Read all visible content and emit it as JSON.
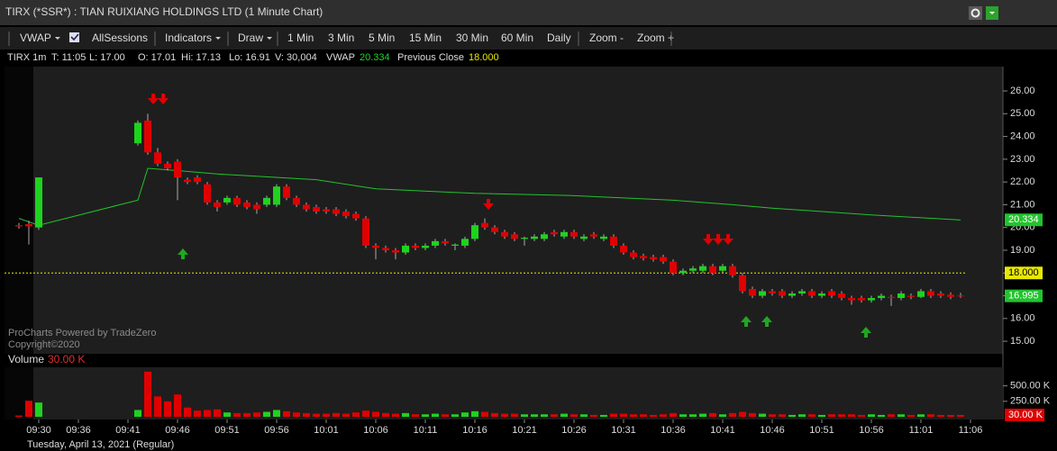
{
  "header": {
    "title": "TIRX (*SSR*) : TIAN RUIXIANG HOLDINGS LTD (1 Minute Chart)"
  },
  "toolbar": [
    "VWAP",
    "AllSessions",
    "Indicators",
    "Draw",
    "1 Min",
    "3 Min",
    "5 Min",
    "15 Min",
    "30 Min",
    "60 Min",
    "Daily",
    "Zoom -",
    "Zoom +"
  ],
  "info": [
    "TIRX 1m",
    "T: 11:05",
    "L: 17.00",
    "O: 17.01",
    "Hi: 17.13",
    "Lo: 16.91",
    "V: 30,004",
    "VWAP",
    "20.334",
    "Previous Close",
    "18.000"
  ],
  "watermark": [
    "ProCharts Powered by TradeZero",
    "Copyright©2020"
  ],
  "footer": "Tuesday, April 13, 2021 (Regular)",
  "chart_data": {
    "type": "candlestick",
    "up_color": "#1ed31e",
    "down_color": "#e00000",
    "categories": [
      null,
      null,
      "09:30",
      null,
      null,
      null,
      "09:36",
      null,
      null,
      null,
      null,
      "09:41",
      null,
      null,
      null,
      null,
      "09:46",
      null,
      null,
      null,
      null,
      "09:51",
      null,
      null,
      null,
      null,
      "09:56",
      null,
      null,
      null,
      null,
      "10:01",
      null,
      null,
      null,
      null,
      "10:06",
      null,
      null,
      null,
      null,
      "10:11",
      null,
      null,
      null,
      null,
      "10:16",
      null,
      null,
      null,
      null,
      "10:21",
      null,
      null,
      null,
      null,
      "10:26",
      null,
      null,
      null,
      null,
      "10:31",
      null,
      null,
      null,
      null,
      "10:36",
      null,
      null,
      null,
      null,
      "10:41",
      null,
      null,
      null,
      null,
      "10:46",
      null,
      null,
      null,
      null,
      "10:51",
      null,
      null,
      null,
      null,
      "10:56",
      null,
      null,
      null,
      null,
      "11:01",
      null,
      null,
      null,
      null,
      "11:06"
    ],
    "candles": [
      {
        "open": 20.1,
        "high": 20.2,
        "low": 19.95,
        "close": 20.05,
        "volume": 20000
      },
      {
        "open": 20.15,
        "high": 20.3,
        "low": 19.25,
        "close": 20.05,
        "volume": 260000
      },
      {
        "open": 20.0,
        "high": 22.2,
        "low": 19.9,
        "close": 22.2,
        "volume": 230000
      },
      null,
      null,
      null,
      null,
      null,
      null,
      null,
      null,
      null,
      {
        "open": 23.7,
        "high": 24.7,
        "low": 23.6,
        "close": 24.6,
        "volume": 110000
      },
      {
        "open": 24.7,
        "high": 25.0,
        "low": 23.2,
        "close": 23.3,
        "volume": 730000
      },
      {
        "open": 23.3,
        "high": 23.5,
        "low": 22.7,
        "close": 22.8,
        "volume": 330000
      },
      {
        "open": 22.8,
        "high": 22.9,
        "low": 22.5,
        "close": 22.6,
        "volume": 250000
      },
      {
        "open": 22.9,
        "high": 23.0,
        "low": 21.2,
        "close": 22.2,
        "volume": 360000
      },
      {
        "open": 22.1,
        "high": 22.2,
        "low": 21.9,
        "close": 22.0,
        "volume": 150000
      },
      {
        "open": 22.2,
        "high": 22.3,
        "low": 21.9,
        "close": 22.0,
        "volume": 100000
      },
      {
        "open": 21.9,
        "high": 22.0,
        "low": 21.0,
        "close": 21.1,
        "volume": 110000
      },
      {
        "open": 21.1,
        "high": 21.2,
        "low": 20.7,
        "close": 20.9,
        "volume": 120000
      },
      {
        "open": 21.1,
        "high": 21.4,
        "low": 21.0,
        "close": 21.3,
        "volume": 70000
      },
      {
        "open": 21.3,
        "high": 21.4,
        "low": 20.9,
        "close": 21.0,
        "volume": 60000
      },
      {
        "open": 21.1,
        "high": 21.2,
        "low": 20.8,
        "close": 20.9,
        "volume": 60000
      },
      {
        "open": 21.0,
        "high": 21.1,
        "low": 20.6,
        "close": 20.8,
        "volume": 70000
      },
      {
        "open": 21.0,
        "high": 21.4,
        "low": 20.9,
        "close": 21.3,
        "volume": 80000
      },
      {
        "open": 21.0,
        "high": 21.9,
        "low": 20.9,
        "close": 21.8,
        "volume": 110000
      },
      {
        "open": 21.8,
        "high": 21.9,
        "low": 21.2,
        "close": 21.3,
        "volume": 90000
      },
      {
        "open": 21.3,
        "high": 21.4,
        "low": 20.9,
        "close": 21.0,
        "volume": 70000
      },
      {
        "open": 21.0,
        "high": 21.1,
        "low": 20.7,
        "close": 20.8,
        "volume": 60000
      },
      {
        "open": 20.9,
        "high": 21.0,
        "low": 20.6,
        "close": 20.7,
        "volume": 50000
      },
      {
        "open": 20.8,
        "high": 20.9,
        "low": 20.6,
        "close": 20.7,
        "volume": 50000
      },
      {
        "open": 20.8,
        "high": 20.9,
        "low": 20.5,
        "close": 20.6,
        "volume": 60000
      },
      {
        "open": 20.7,
        "high": 20.8,
        "low": 20.4,
        "close": 20.5,
        "volume": 50000
      },
      {
        "open": 20.6,
        "high": 20.7,
        "low": 20.3,
        "close": 20.4,
        "volume": 70000
      },
      {
        "open": 20.4,
        "high": 20.5,
        "low": 19.1,
        "close": 19.2,
        "volume": 100000
      },
      {
        "open": 19.2,
        "high": 19.3,
        "low": 18.6,
        "close": 19.1,
        "volume": 80000
      },
      {
        "open": 19.1,
        "high": 19.2,
        "low": 18.9,
        "close": 19.0,
        "volume": 60000
      },
      {
        "open": 19.0,
        "high": 19.1,
        "low": 18.6,
        "close": 18.9,
        "volume": 50000
      },
      {
        "open": 18.9,
        "high": 19.3,
        "low": 18.8,
        "close": 19.2,
        "volume": 60000
      },
      {
        "open": 19.2,
        "high": 19.3,
        "low": 19.0,
        "close": 19.1,
        "volume": 40000
      },
      {
        "open": 19.1,
        "high": 19.3,
        "low": 19.0,
        "close": 19.2,
        "volume": 40000
      },
      {
        "open": 19.2,
        "high": 19.5,
        "low": 19.1,
        "close": 19.4,
        "volume": 50000
      },
      {
        "open": 19.4,
        "high": 19.5,
        "low": 19.2,
        "close": 19.3,
        "volume": 40000
      },
      {
        "open": 19.2,
        "high": 19.3,
        "low": 19.0,
        "close": 19.25,
        "volume": 40000
      },
      {
        "open": 19.2,
        "high": 19.6,
        "low": 19.1,
        "close": 19.5,
        "volume": 70000
      },
      {
        "open": 19.5,
        "high": 20.2,
        "low": 19.4,
        "close": 20.1,
        "volume": 90000
      },
      {
        "open": 20.2,
        "high": 20.4,
        "low": 19.9,
        "close": 20.0,
        "volume": 80000
      },
      {
        "open": 20.0,
        "high": 20.1,
        "low": 19.7,
        "close": 19.8,
        "volume": 60000
      },
      {
        "open": 19.8,
        "high": 19.9,
        "low": 19.5,
        "close": 19.6,
        "volume": 50000
      },
      {
        "open": 19.7,
        "high": 19.8,
        "low": 19.4,
        "close": 19.5,
        "volume": 50000
      },
      {
        "open": 19.5,
        "high": 19.6,
        "low": 19.2,
        "close": 19.55,
        "volume": 40000
      },
      {
        "open": 19.5,
        "high": 19.7,
        "low": 19.4,
        "close": 19.6,
        "volume": 40000
      },
      {
        "open": 19.5,
        "high": 19.8,
        "low": 19.4,
        "close": 19.7,
        "volume": 40000
      },
      {
        "open": 19.8,
        "high": 19.9,
        "low": 19.6,
        "close": 19.7,
        "volume": 40000
      },
      {
        "open": 19.6,
        "high": 19.9,
        "low": 19.5,
        "close": 19.8,
        "volume": 50000
      },
      {
        "open": 19.8,
        "high": 19.9,
        "low": 19.5,
        "close": 19.6,
        "volume": 40000
      },
      {
        "open": 19.5,
        "high": 19.7,
        "low": 19.4,
        "close": 19.6,
        "volume": 40000
      },
      {
        "open": 19.7,
        "high": 19.8,
        "low": 19.5,
        "close": 19.6,
        "volume": 30000
      },
      {
        "open": 19.5,
        "high": 19.7,
        "low": 19.4,
        "close": 19.6,
        "volume": 30000
      },
      {
        "open": 19.6,
        "high": 19.7,
        "low": 19.1,
        "close": 19.2,
        "volume": 50000
      },
      {
        "open": 19.2,
        "high": 19.3,
        "low": 18.8,
        "close": 18.9,
        "volume": 50000
      },
      {
        "open": 18.9,
        "high": 19.0,
        "low": 18.6,
        "close": 18.7,
        "volume": 40000
      },
      {
        "open": 18.75,
        "high": 18.85,
        "low": 18.55,
        "close": 18.65,
        "volume": 40000
      },
      {
        "open": 18.7,
        "high": 18.8,
        "low": 18.5,
        "close": 18.6,
        "volume": 30000
      },
      {
        "open": 18.7,
        "high": 18.8,
        "low": 18.4,
        "close": 18.5,
        "volume": 40000
      },
      {
        "open": 18.5,
        "high": 18.6,
        "low": 17.9,
        "close": 18.0,
        "volume": 60000
      },
      {
        "open": 18.0,
        "high": 18.2,
        "low": 17.9,
        "close": 18.1,
        "volume": 40000
      },
      {
        "open": 18.1,
        "high": 18.3,
        "low": 18.0,
        "close": 18.2,
        "volume": 40000
      },
      {
        "open": 18.1,
        "high": 18.4,
        "low": 18.0,
        "close": 18.3,
        "volume": 50000
      },
      {
        "open": 18.3,
        "high": 18.4,
        "low": 17.9,
        "close": 18.0,
        "volume": 60000
      },
      {
        "open": 18.1,
        "high": 18.4,
        "low": 18.0,
        "close": 18.3,
        "volume": 40000
      },
      {
        "open": 18.3,
        "high": 18.4,
        "low": 17.8,
        "close": 17.9,
        "volume": 60000
      },
      {
        "open": 17.9,
        "high": 18.0,
        "low": 17.1,
        "close": 17.2,
        "volume": 80000
      },
      {
        "open": 17.3,
        "high": 17.4,
        "low": 16.9,
        "close": 17.0,
        "volume": 60000
      },
      {
        "open": 17.0,
        "high": 17.3,
        "low": 16.9,
        "close": 17.2,
        "volume": 50000
      },
      {
        "open": 17.2,
        "high": 17.3,
        "low": 17.0,
        "close": 17.1,
        "volume": 40000
      },
      {
        "open": 17.2,
        "high": 17.3,
        "low": 16.9,
        "close": 17.0,
        "volume": 40000
      },
      {
        "open": 17.0,
        "high": 17.2,
        "low": 16.9,
        "close": 17.1,
        "volume": 30000
      },
      {
        "open": 17.1,
        "high": 17.3,
        "low": 17.0,
        "close": 17.2,
        "volume": 40000
      },
      {
        "open": 17.2,
        "high": 17.3,
        "low": 16.9,
        "close": 17.0,
        "volume": 40000
      },
      {
        "open": 17.0,
        "high": 17.2,
        "low": 16.9,
        "close": 17.1,
        "volume": 30000
      },
      {
        "open": 17.2,
        "high": 17.3,
        "low": 16.9,
        "close": 17.0,
        "volume": 40000
      },
      {
        "open": 17.1,
        "high": 17.2,
        "low": 16.8,
        "close": 16.9,
        "volume": 40000
      },
      {
        "open": 16.9,
        "high": 17.0,
        "low": 16.6,
        "close": 16.8,
        "volume": 40000
      },
      {
        "open": 16.9,
        "high": 17.0,
        "low": 16.7,
        "close": 16.8,
        "volume": 30000
      },
      {
        "open": 16.8,
        "high": 17.0,
        "low": 16.7,
        "close": 16.9,
        "volume": 40000
      },
      {
        "open": 16.9,
        "high": 17.1,
        "low": 16.8,
        "close": 17.0,
        "volume": 30000
      },
      {
        "open": 16.95,
        "high": 17.05,
        "low": 16.55,
        "close": 16.9,
        "volume": 40000
      },
      {
        "open": 16.9,
        "high": 17.2,
        "low": 16.8,
        "close": 17.1,
        "volume": 40000
      },
      {
        "open": 17.0,
        "high": 17.1,
        "low": 16.85,
        "close": 16.95,
        "volume": 30000
      },
      {
        "open": 16.95,
        "high": 17.3,
        "low": 16.9,
        "close": 17.2,
        "volume": 40000
      },
      {
        "open": 17.2,
        "high": 17.3,
        "low": 16.9,
        "close": 17.0,
        "volume": 40000
      },
      {
        "open": 17.1,
        "high": 17.2,
        "low": 16.9,
        "close": 17.0,
        "volume": 30000
      },
      {
        "open": 17.05,
        "high": 17.15,
        "low": 16.85,
        "close": 16.95,
        "volume": 30000
      },
      {
        "open": 17.01,
        "high": 17.13,
        "low": 16.91,
        "close": 17.0,
        "volume": 30004
      },
      null
    ],
    "ylim": [
      14.45,
      27.03
    ],
    "yticks": [
      {
        "value": 15,
        "label": "15.00"
      },
      {
        "value": 16,
        "label": "16.00"
      },
      {
        "value": 17,
        "label": "17.00"
      },
      {
        "value": 18,
        "label": "18.00"
      },
      {
        "value": 19,
        "label": "19.00"
      },
      {
        "value": 20,
        "label": "20.00"
      },
      {
        "value": 21,
        "label": "21.00"
      },
      {
        "value": 22,
        "label": "22.00"
      },
      {
        "value": 23,
        "label": "23.00"
      },
      {
        "value": 24,
        "label": "24.00"
      },
      {
        "value": 25,
        "label": "25.00"
      },
      {
        "value": 26,
        "label": "26.00"
      }
    ],
    "vwap": {
      "name": "VWAP",
      "color": "#22c32e",
      "x": [
        0,
        2,
        12,
        13,
        16,
        20,
        30,
        36,
        46,
        56,
        66,
        72,
        76,
        86,
        95
      ],
      "values": [
        20.4,
        20.1,
        21.2,
        22.6,
        22.5,
        22.35,
        22.1,
        21.7,
        21.5,
        21.4,
        21.2,
        21.0,
        20.85,
        20.55,
        20.33
      ]
    },
    "previous_close": 18,
    "previous_close_color": "#e8e800",
    "price_markers": [
      {
        "value": 20.334,
        "label": "20.334",
        "color": "#22c32e"
      },
      {
        "value": 18,
        "label": "18.000",
        "color": "#e8e800"
      },
      {
        "value": 16.995,
        "label": "16.995",
        "color": "#22c32e"
      }
    ],
    "volume_title": "Volume",
    "volume_last": {
      "value": 30004,
      "label": "30.00 K"
    },
    "vlim": [
      0,
      800000
    ],
    "vticks": [
      {
        "value": 250000,
        "label": "250.00 K"
      },
      {
        "value": 500000,
        "label": "500.00 K"
      }
    ]
  }
}
